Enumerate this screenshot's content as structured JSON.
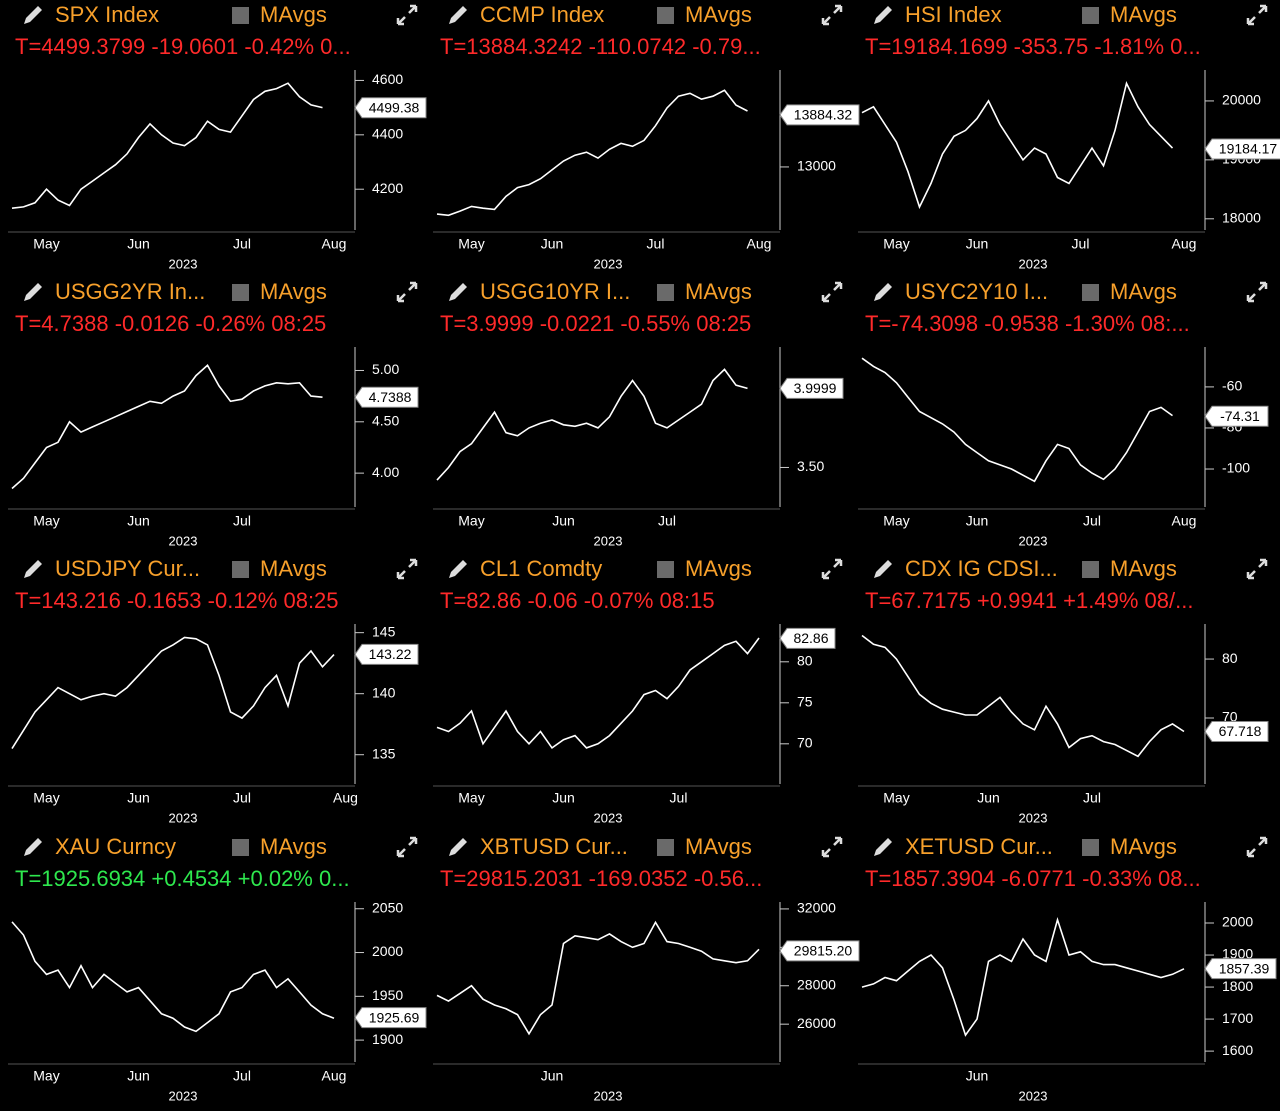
{
  "chart_data": [
    {
      "type": "line",
      "title": "SPX Index",
      "study_label": "MAvgs",
      "quote": "T=4499.3799 -19.0601 -0.42% 0...",
      "quote_color": "#ff2a2a",
      "year_label": "2023",
      "color": "#ffffff",
      "categories": [
        null,
        null,
        null,
        "May",
        null,
        null,
        null,
        null,
        null,
        null,
        null,
        "Jun",
        null,
        null,
        null,
        null,
        null,
        null,
        null,
        null,
        "Jul",
        null,
        null,
        null,
        null,
        null,
        null,
        null,
        "Aug",
        null
      ],
      "values": [
        4130,
        4135,
        4150,
        4200,
        4160,
        4140,
        4200,
        4230,
        4260,
        4290,
        4330,
        4390,
        4440,
        4400,
        4370,
        4360,
        4390,
        4450,
        4420,
        4410,
        4470,
        4530,
        4560,
        4570,
        4590,
        4540,
        4510,
        4500,
        null,
        null
      ],
      "ylim": [
        4050,
        4620
      ],
      "yticks": [
        4200,
        4400,
        4600
      ],
      "last_value": 4499.38
    },
    {
      "type": "line",
      "title": "CCMP Index",
      "study_label": "MAvgs",
      "quote": "T=13884.3242 -110.0742 -0.79...",
      "quote_color": "#ff2a2a",
      "year_label": "2023",
      "color": "#ffffff",
      "categories": [
        null,
        null,
        null,
        "May",
        null,
        null,
        null,
        null,
        null,
        null,
        "Jun",
        null,
        null,
        null,
        null,
        null,
        null,
        null,
        null,
        "Jul",
        null,
        null,
        null,
        null,
        null,
        null,
        null,
        null,
        "Aug",
        null
      ],
      "values": [
        12200,
        12180,
        12250,
        12330,
        12300,
        12280,
        12500,
        12650,
        12700,
        12800,
        12950,
        13100,
        13200,
        13250,
        13150,
        13300,
        13400,
        13350,
        13450,
        13700,
        14000,
        14200,
        14250,
        14150,
        14200,
        14300,
        14050,
        13950,
        null,
        null
      ],
      "ylim": [
        11930,
        14560
      ],
      "yticks": [
        13000
      ],
      "last_value": 13884.32
    },
    {
      "type": "line",
      "title": "HSI Index",
      "study_label": "MAvgs",
      "quote": "T=19184.1699 -353.75 -1.81% 0...",
      "quote_color": "#ff2a2a",
      "year_label": "2023",
      "color": "#ffffff",
      "categories": [
        null,
        null,
        null,
        "May",
        null,
        null,
        null,
        null,
        null,
        null,
        "Jun",
        null,
        null,
        null,
        null,
        null,
        null,
        null,
        null,
        "Jul",
        null,
        null,
        null,
        null,
        null,
        null,
        null,
        null,
        "Aug",
        null
      ],
      "values": [
        19800,
        19900,
        19600,
        19300,
        18800,
        18200,
        18600,
        19100,
        19400,
        19500,
        19700,
        20000,
        19600,
        19300,
        19000,
        19200,
        19100,
        18700,
        18600,
        18900,
        19200,
        18900,
        19500,
        20300,
        19900,
        19600,
        19400,
        19200,
        null,
        null
      ],
      "ylim": [
        17810,
        20440
      ],
      "yticks": [
        18000,
        19000,
        20000
      ],
      "last_value": 19184.17
    },
    {
      "type": "line",
      "title": "USGG2YR In...",
      "study_label": "MAvgs",
      "quote": "T=4.7388 -0.0126 -0.26% 08:25",
      "quote_color": "#ff2a2a",
      "year_label": "2023",
      "color": "#ffffff",
      "categories": [
        null,
        null,
        null,
        "May",
        null,
        null,
        null,
        null,
        null,
        null,
        null,
        "Jun",
        null,
        null,
        null,
        null,
        null,
        null,
        null,
        null,
        "Jul",
        null,
        null,
        null,
        null,
        null,
        null,
        null,
        null,
        null
      ],
      "values": [
        3.85,
        3.95,
        4.1,
        4.25,
        4.3,
        4.5,
        4.4,
        4.45,
        4.5,
        4.55,
        4.6,
        4.65,
        4.7,
        4.68,
        4.75,
        4.8,
        4.95,
        5.05,
        4.85,
        4.7,
        4.72,
        4.8,
        4.85,
        4.88,
        4.87,
        4.88,
        4.75,
        4.74,
        null,
        null
      ],
      "ylim": [
        3.67,
        5.18
      ],
      "yticks": [
        {
          "value": 4,
          "label": "4.00"
        },
        {
          "value": 4.5,
          "label": "4.50"
        },
        {
          "value": 5,
          "label": "5.00"
        }
      ],
      "last_value": 4.7388
    },
    {
      "type": "line",
      "title": "USGG10YR I...",
      "study_label": "MAvgs",
      "quote": "T=3.9999 -0.0221 -0.55% 08:25",
      "quote_color": "#ff2a2a",
      "year_label": "2023",
      "color": "#ffffff",
      "categories": [
        null,
        null,
        null,
        "May",
        null,
        null,
        null,
        null,
        null,
        null,
        null,
        "Jun",
        null,
        null,
        null,
        null,
        null,
        null,
        null,
        null,
        "Jul",
        null,
        null,
        null,
        null,
        null,
        null,
        null,
        null,
        null
      ],
      "values": [
        3.42,
        3.5,
        3.6,
        3.65,
        3.75,
        3.85,
        3.72,
        3.7,
        3.75,
        3.78,
        3.8,
        3.77,
        3.76,
        3.78,
        3.75,
        3.82,
        3.95,
        4.05,
        3.95,
        3.78,
        3.75,
        3.8,
        3.85,
        3.9,
        4.05,
        4.12,
        4.02,
        4.0,
        null,
        null
      ],
      "ylim": [
        3.25,
        4.23
      ],
      "yticks": [
        {
          "value": 3.5,
          "label": "3.50"
        }
      ],
      "last_value": 3.9999
    },
    {
      "type": "line",
      "title": "USYC2Y10 I...",
      "study_label": "MAvgs",
      "quote": "T=-74.3098 -0.9538 -1.30% 08:...",
      "quote_color": "#ff2a2a",
      "year_label": "2023",
      "color": "#ffffff",
      "categories": [
        null,
        null,
        null,
        "May",
        null,
        null,
        null,
        null,
        null,
        null,
        "Jun",
        null,
        null,
        null,
        null,
        null,
        null,
        null,
        null,
        null,
        "Jul",
        null,
        null,
        null,
        null,
        null,
        null,
        null,
        "Aug",
        null
      ],
      "values": [
        -46,
        -50,
        -53,
        -58,
        -65,
        -72,
        -75,
        -78,
        -82,
        -88,
        -92,
        -96,
        -98,
        -100,
        -103,
        -106,
        -96,
        -88,
        -90,
        -98,
        -102,
        -105,
        -100,
        -92,
        -82,
        -72,
        -70,
        -74,
        null,
        null
      ],
      "ylim": [
        -118.5,
        -43
      ],
      "yticks": [
        -100,
        -80,
        -60
      ],
      "last_value": -74.31
    },
    {
      "type": "line",
      "title": "USDJPY Cur...",
      "study_label": "MAvgs",
      "quote": "T=143.216 -0.1653 -0.12% 08:25",
      "quote_color": "#ff2a2a",
      "year_label": "2023",
      "color": "#ffffff",
      "categories": [
        null,
        null,
        null,
        "May",
        null,
        null,
        null,
        null,
        null,
        null,
        null,
        "Jun",
        null,
        null,
        null,
        null,
        null,
        null,
        null,
        null,
        "Jul",
        null,
        null,
        null,
        null,
        null,
        null,
        null,
        null,
        "Aug"
      ],
      "values": [
        135.5,
        137,
        138.5,
        139.5,
        140.5,
        140,
        139.5,
        139.8,
        140,
        139.8,
        140.5,
        141.5,
        142.5,
        143.5,
        144,
        144.6,
        144.5,
        144,
        141.5,
        138.5,
        138,
        139,
        140.5,
        141.5,
        139,
        142.5,
        143.5,
        142.2,
        143.2,
        null
      ],
      "ylim": [
        132.6,
        145.3
      ],
      "yticks": [
        135,
        140,
        145
      ],
      "last_value": 143.22
    },
    {
      "type": "line",
      "title": "CL1 Comdty",
      "study_label": "MAvgs",
      "quote": "T=82.86 -0.06 -0.07% 08:15",
      "quote_color": "#ff2a2a",
      "year_label": "2023",
      "color": "#ffffff",
      "categories": [
        null,
        null,
        null,
        "May",
        null,
        null,
        null,
        null,
        null,
        null,
        null,
        "Jun",
        null,
        null,
        null,
        null,
        null,
        null,
        null,
        null,
        null,
        "Jul",
        null,
        null,
        null,
        null,
        null,
        null,
        null,
        null
      ],
      "values": [
        72,
        71.5,
        72.5,
        74,
        70,
        72,
        74,
        71.5,
        70,
        71.5,
        69.5,
        70.5,
        71,
        69.5,
        70,
        71,
        72.5,
        74,
        76,
        76.5,
        75.5,
        77,
        79,
        80,
        81,
        82,
        82.5,
        81,
        82.9,
        null
      ],
      "ylim": [
        65.1,
        84.0
      ],
      "yticks": [
        70,
        75,
        80
      ],
      "last_value": 82.86
    },
    {
      "type": "line",
      "title": "CDX IG CDSI...",
      "study_label": "MAvgs",
      "quote": "T=67.7175 +0.9941 +1.49% 08/...",
      "quote_color": "#ff2a2a",
      "year_label": "2023",
      "color": "#ffffff",
      "categories": [
        null,
        null,
        null,
        "May",
        null,
        null,
        null,
        null,
        null,
        null,
        null,
        "Jun",
        null,
        null,
        null,
        null,
        null,
        null,
        null,
        null,
        "Jul",
        null,
        null,
        null,
        null,
        null,
        null,
        null,
        null,
        null
      ],
      "values": [
        84,
        82.5,
        82,
        80,
        77,
        74,
        72.5,
        71.5,
        71,
        70.5,
        70.5,
        72,
        73.5,
        71,
        69,
        68,
        72,
        69,
        65,
        66.5,
        67,
        66,
        65.5,
        64.5,
        63.5,
        66,
        68,
        69,
        67.7,
        null
      ],
      "ylim": [
        58.8,
        85.1
      ],
      "yticks": [
        70,
        80
      ],
      "last_value": 67.718
    },
    {
      "type": "line",
      "title": "XAU Curncy",
      "study_label": "MAvgs",
      "quote": "T=1925.6934 +0.4534 +0.02% 0...",
      "quote_color": "#2ee84e",
      "year_label": "2023",
      "color": "#ffffff",
      "categories": [
        null,
        null,
        null,
        "May",
        null,
        null,
        null,
        null,
        null,
        null,
        null,
        "Jun",
        null,
        null,
        null,
        null,
        null,
        null,
        null,
        null,
        "Jul",
        null,
        null,
        null,
        null,
        null,
        null,
        null,
        "Aug",
        null
      ],
      "values": [
        2035,
        2020,
        1990,
        1975,
        1980,
        1960,
        1985,
        1960,
        1975,
        1965,
        1955,
        1960,
        1945,
        1930,
        1925,
        1915,
        1910,
        1920,
        1930,
        1955,
        1960,
        1975,
        1980,
        1960,
        1970,
        1955,
        1940,
        1930,
        1925,
        null
      ],
      "ylim": [
        1875,
        2052
      ],
      "yticks": [
        1900,
        1950,
        2000,
        2050
      ],
      "last_value": 1925.69
    },
    {
      "type": "line",
      "title": "XBTUSD Cur...",
      "study_label": "MAvgs",
      "quote": "T=29815.2031 -169.0352 -0.56...",
      "quote_color": "#ff2a2a",
      "year_label": "2023",
      "color": "#ffffff",
      "categories": [
        null,
        null,
        null,
        null,
        null,
        null,
        null,
        null,
        null,
        null,
        "Jun",
        null,
        null,
        null,
        null,
        null,
        null,
        null,
        null,
        null,
        null,
        null,
        null,
        null,
        null,
        null,
        null,
        null,
        null,
        null
      ],
      "values": [
        27500,
        27200,
        27600,
        28000,
        27300,
        27000,
        26800,
        26500,
        25500,
        26500,
        27000,
        30200,
        30600,
        30500,
        30400,
        30700,
        30300,
        30000,
        30200,
        31300,
        30300,
        30200,
        30000,
        29800,
        29400,
        29300,
        29200,
        29300,
        29900,
        null
      ],
      "ylim": [
        24030,
        32100
      ],
      "yticks": [
        26000,
        28000,
        30000,
        32000
      ],
      "last_value": {
        "value": 29815.2,
        "label": "29815.20"
      }
    },
    {
      "type": "line",
      "title": "XETUSD Cur...",
      "study_label": "MAvgs",
      "quote": "T=1857.3904 -6.0771 -0.33% 08...",
      "quote_color": "#ff2a2a",
      "year_label": "2023",
      "color": "#ffffff",
      "categories": [
        null,
        null,
        null,
        null,
        null,
        null,
        null,
        null,
        null,
        null,
        "Jun",
        null,
        null,
        null,
        null,
        null,
        null,
        null,
        null,
        null,
        null,
        null,
        null,
        null,
        null,
        null,
        null,
        null,
        null,
        null
      ],
      "values": [
        1800,
        1810,
        1830,
        1820,
        1850,
        1880,
        1900,
        1860,
        1760,
        1650,
        1700,
        1880,
        1900,
        1880,
        1950,
        1900,
        1880,
        2010,
        1900,
        1910,
        1880,
        1870,
        1870,
        1860,
        1850,
        1840,
        1830,
        1840,
        1857,
        null
      ],
      "ylim": [
        1566,
        2050
      ],
      "yticks": [
        1600,
        1700,
        1800,
        1900,
        2000
      ],
      "last_value": 1857.39
    }
  ]
}
